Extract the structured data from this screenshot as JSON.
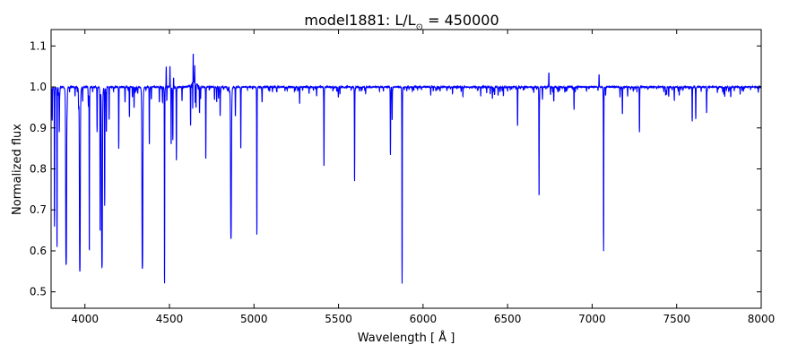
{
  "chart_data": {
    "type": "line",
    "title_main": "model1881: L/L",
    "title_sub": "⊙",
    "title_value": " = 450000",
    "xlabel": "Wavelength [ Å ]",
    "ylabel": "Normalized flux",
    "xlim": [
      3800,
      8000
    ],
    "ylim": [
      0.46,
      1.14
    ],
    "xticks": [
      4000,
      4500,
      5000,
      5500,
      6000,
      6500,
      7000,
      7500,
      8000
    ],
    "xtick_labels": [
      "4000",
      "4500",
      "5000",
      "5500",
      "6000",
      "6500",
      "7000",
      "7500",
      "8000"
    ],
    "yticks": [
      0.5,
      0.6,
      0.7,
      0.8,
      0.9,
      1.0,
      1.1
    ],
    "ytick_labels": [
      "0.5",
      "0.6",
      "0.7",
      "0.8",
      "0.9",
      "1.0",
      "1.1"
    ],
    "grid": false,
    "series": [
      {
        "name": "spectrum",
        "color": "#0000ff",
        "continuum": 1.0
      }
    ],
    "features": [
      [
        3820,
        0.66
      ],
      [
        3835,
        0.61
      ],
      [
        3889,
        0.57
      ],
      [
        3970,
        0.55
      ],
      [
        4026,
        0.6
      ],
      [
        4072,
        0.89
      ],
      [
        4090,
        0.65
      ],
      [
        4101,
        0.56
      ],
      [
        4117,
        0.74
      ],
      [
        4143,
        0.92
      ],
      [
        4200,
        0.85
      ],
      [
        4340,
        0.56
      ],
      [
        4381,
        0.86
      ],
      [
        4471,
        0.52
      ],
      [
        4481,
        1.05
      ],
      [
        4503,
        1.05
      ],
      [
        4510,
        0.86
      ],
      [
        4520,
        0.87
      ],
      [
        4525,
        1.05
      ],
      [
        4541,
        0.82
      ],
      [
        4625,
        0.9
      ],
      [
        4640,
        1.085
      ],
      [
        4650,
        1.05
      ],
      [
        4657,
        0.94
      ],
      [
        4678,
        0.935
      ],
      [
        4715,
        0.825
      ],
      [
        4864,
        0.64
      ],
      [
        4890,
        0.93
      ],
      [
        4922,
        0.85
      ],
      [
        5017,
        0.64
      ],
      [
        5048,
        0.965
      ],
      [
        5270,
        0.96
      ],
      [
        5414,
        0.81
      ],
      [
        5499,
        0.975
      ],
      [
        5595,
        0.77
      ],
      [
        5807,
        0.835
      ],
      [
        5817,
        0.92
      ],
      [
        5876,
        0.52
      ],
      [
        6410,
        0.98
      ],
      [
        6559,
        0.905
      ],
      [
        6686,
        0.735
      ],
      [
        6744,
        1.035
      ],
      [
        6893,
        0.945
      ],
      [
        7041,
        1.03
      ],
      [
        7068,
        0.6
      ],
      [
        7179,
        0.935
      ],
      [
        7280,
        0.89
      ],
      [
        7486,
        0.97
      ],
      [
        7592,
        0.915
      ],
      [
        7613,
        0.96
      ],
      [
        7677,
        0.945
      ],
      [
        7820,
        0.975
      ]
    ]
  }
}
